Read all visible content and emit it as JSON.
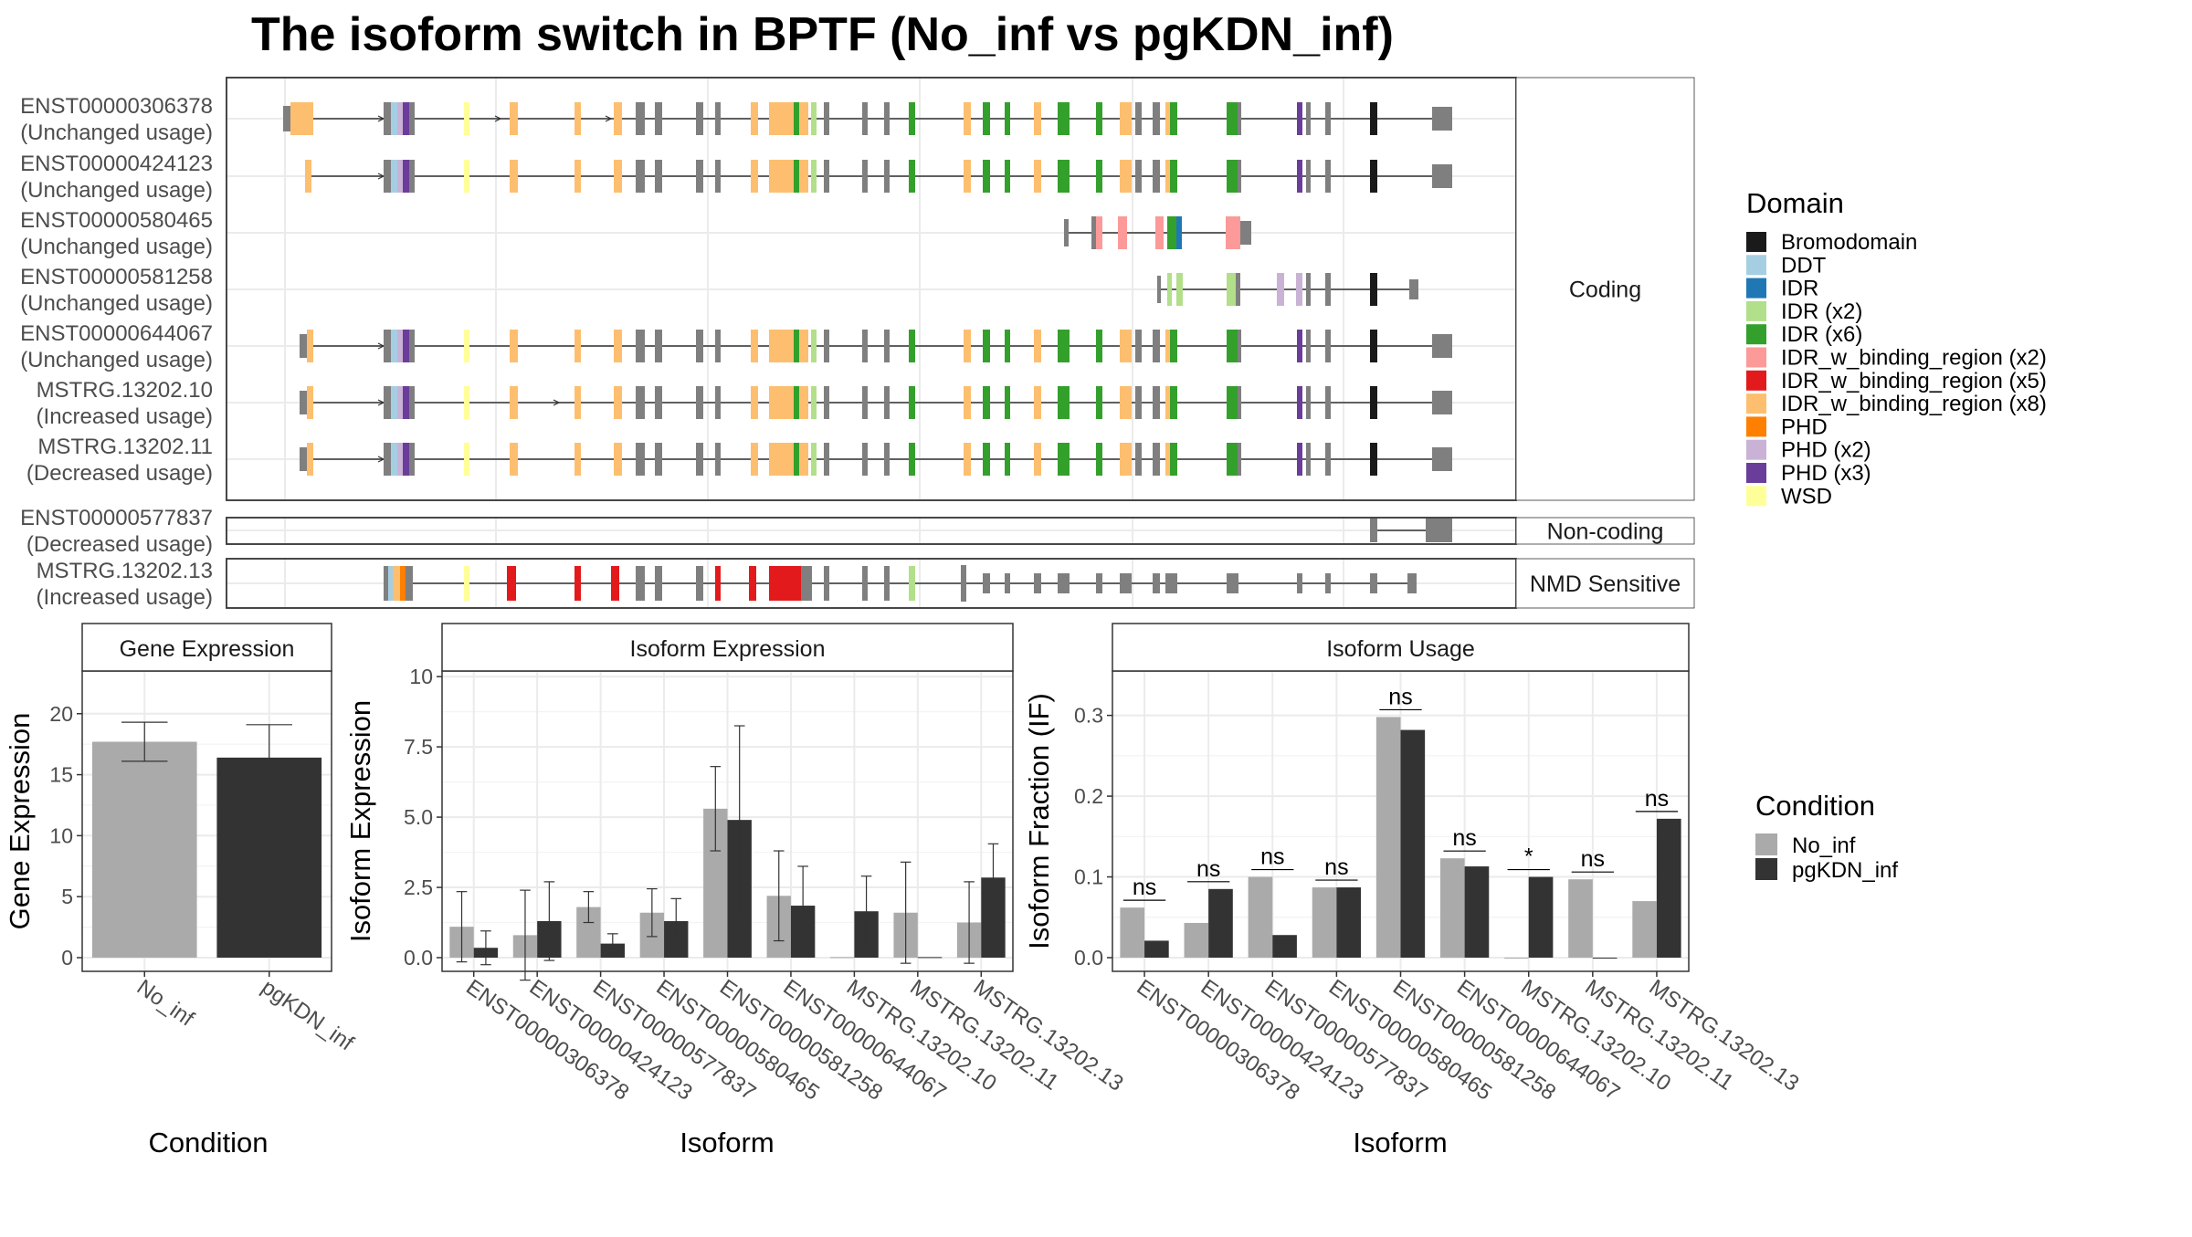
{
  "title": "The isoform switch in BPTF (No_inf vs pgKDN_inf)",
  "colors": {
    "no_inf": "#aaaaaa",
    "pgkdn_inf": "#333333",
    "noncoding_exon": "#7f7f7f",
    "strip_bg": "#ffffff",
    "grid": "#ebebeb",
    "panel_border": "#333333"
  },
  "legends": {
    "domain": {
      "title": "Domain",
      "items": [
        {
          "label": "Bromodomain",
          "color": "#1a1a1a"
        },
        {
          "label": "DDT",
          "color": "#a6cee3"
        },
        {
          "label": "IDR",
          "color": "#1f78b4"
        },
        {
          "label": "IDR (x2)",
          "color": "#b2df8a"
        },
        {
          "label": "IDR (x6)",
          "color": "#33a02c"
        },
        {
          "label": "IDR_w_binding_region (x2)",
          "color": "#fb9a99"
        },
        {
          "label": "IDR_w_binding_region (x5)",
          "color": "#e31a1c"
        },
        {
          "label": "IDR_w_binding_region (x8)",
          "color": "#fdbf6f"
        },
        {
          "label": "PHD",
          "color": "#ff7f00"
        },
        {
          "label": "PHD (x2)",
          "color": "#cab2d6"
        },
        {
          "label": "PHD (x3)",
          "color": "#6a3d9a"
        },
        {
          "label": "WSD",
          "color": "#ffff99"
        }
      ]
    },
    "condition": {
      "title": "Condition",
      "items": [
        {
          "label": "No_inf",
          "color": "#aaaaaa"
        },
        {
          "label": "pgKDN_inf",
          "color": "#333333"
        }
      ]
    }
  },
  "structure": {
    "groups": [
      {
        "label": "Coding",
        "isoforms": [
          {
            "id": "ENST00000306378",
            "usage": "(Unchanged usage)"
          },
          {
            "id": "ENST00000424123",
            "usage": "(Unchanged usage)"
          },
          {
            "id": "ENST00000580465",
            "usage": "(Unchanged usage)"
          },
          {
            "id": "ENST00000581258",
            "usage": "(Unchanged usage)"
          },
          {
            "id": "ENST00000644067",
            "usage": "(Unchanged usage)"
          },
          {
            "id": "MSTRG.13202.10",
            "usage": "(Increased usage)"
          },
          {
            "id": "MSTRG.13202.11",
            "usage": "(Decreased usage)"
          }
        ]
      },
      {
        "label": "Non-coding",
        "isoforms": [
          {
            "id": "ENST00000577837",
            "usage": "(Decreased usage)"
          }
        ]
      },
      {
        "label": "NMD Sensitive",
        "isoforms": [
          {
            "id": "MSTRG.13202.13",
            "usage": "(Increased usage)"
          }
        ]
      }
    ]
  },
  "chart_data": [
    {
      "type": "bar",
      "title": "Gene Expression",
      "xlabel": "Condition",
      "ylabel": "Gene Expression",
      "ylim": [
        0,
        23.5
      ],
      "yticks": [
        0,
        5,
        10,
        15,
        20
      ],
      "categories": [
        "No_inf",
        "pgKDN_inf"
      ],
      "series": [
        {
          "values": [
            17.7,
            16.4
          ],
          "errors": [
            1.6,
            2.7
          ]
        }
      ]
    },
    {
      "type": "bar",
      "title": "Isoform Expression",
      "xlabel": "Isoform",
      "ylabel": "Isoform Expression",
      "ylim": [
        0,
        10.2
      ],
      "yticks": [
        0.0,
        2.5,
        5.0,
        7.5,
        10.0
      ],
      "categories": [
        "ENST00000306378",
        "ENST00000424123",
        "ENST00000577837",
        "ENST00000580465",
        "ENST00000581258",
        "ENST00000644067",
        "MSTRG.13202.10",
        "MSTRG.13202.11",
        "MSTRG.13202.13"
      ],
      "series": [
        {
          "name": "No_inf",
          "values": [
            1.1,
            0.8,
            1.8,
            1.6,
            5.3,
            2.2,
            0.02,
            1.6,
            1.25
          ],
          "errors": [
            1.25,
            1.6,
            0.55,
            0.85,
            1.5,
            1.6,
            0,
            1.8,
            1.45
          ]
        },
        {
          "name": "pgKDN_inf",
          "values": [
            0.35,
            1.3,
            0.5,
            1.3,
            4.9,
            1.85,
            1.65,
            0.02,
            2.85
          ],
          "errors": [
            0.6,
            1.4,
            0.35,
            0.8,
            3.35,
            1.4,
            1.25,
            0,
            1.2
          ]
        }
      ]
    },
    {
      "type": "bar",
      "title": "Isoform Usage",
      "xlabel": "Isoform",
      "ylabel": "Isoform Fraction (IF)",
      "ylim": [
        0,
        0.355
      ],
      "yticks": [
        0.0,
        0.1,
        0.2,
        0.3
      ],
      "categories": [
        "ENST00000306378",
        "ENST00000424123",
        "ENST00000577837",
        "ENST00000580465",
        "ENST00000581258",
        "ENST00000644067",
        "MSTRG.13202.10",
        "MSTRG.13202.11",
        "MSTRG.13202.13"
      ],
      "series": [
        {
          "name": "No_inf",
          "values": [
            0.062,
            0.043,
            0.1,
            0.087,
            0.298,
            0.123,
            0.0,
            0.097,
            0.07
          ]
        },
        {
          "name": "pgKDN_inf",
          "values": [
            0.021,
            0.085,
            0.028,
            0.087,
            0.282,
            0.113,
            0.1,
            0.0,
            0.172
          ]
        }
      ],
      "significance": [
        "ns",
        "ns",
        "ns",
        "ns",
        "ns",
        "ns",
        "*",
        "ns",
        "ns"
      ]
    }
  ]
}
